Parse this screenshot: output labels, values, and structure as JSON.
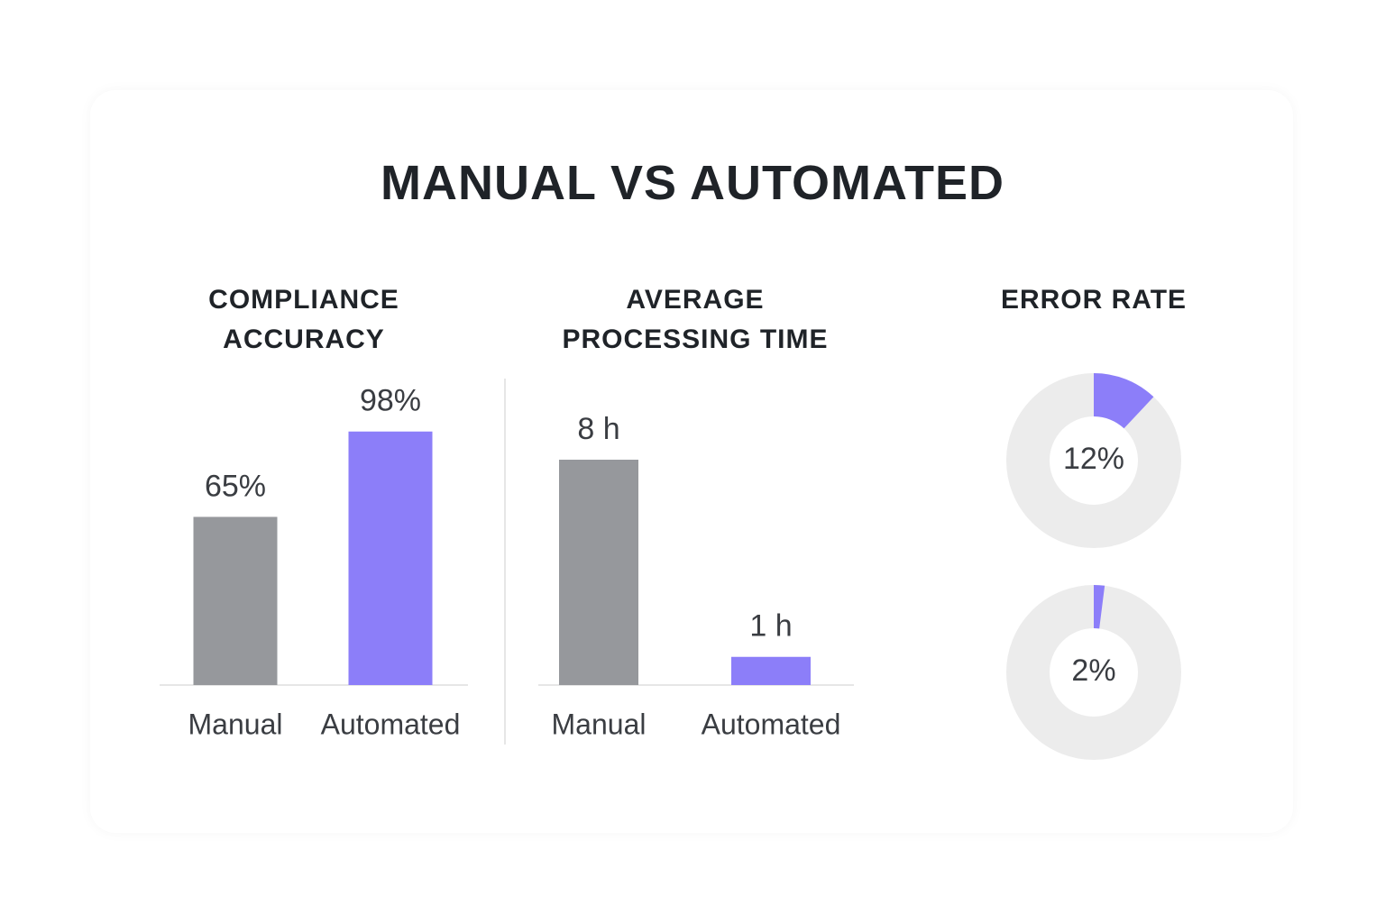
{
  "title": "MANUAL VS AUTOMATED",
  "chart_data": [
    {
      "type": "bar",
      "title": "COMPLIANCE ACCURACY",
      "categories": [
        "Manual",
        "Automated"
      ],
      "values": [
        65,
        98
      ],
      "value_labels": [
        "65%",
        "98%"
      ],
      "colors": [
        "#96989c",
        "#8c7ef9"
      ]
    },
    {
      "type": "bar",
      "title": "AVERAGE PROCESSING TIME",
      "categories": [
        "Manual",
        "Automated"
      ],
      "values": [
        8,
        1
      ],
      "value_labels": [
        "8 h",
        "1 h"
      ],
      "colors": [
        "#96989c",
        "#8c7ef9"
      ]
    },
    {
      "type": "donut",
      "title": "ERROR RATE",
      "values": [
        12,
        2
      ],
      "value_labels": [
        "12%",
        "2%"
      ],
      "color": "#8c7ef9",
      "track_color": "#ececec"
    }
  ]
}
